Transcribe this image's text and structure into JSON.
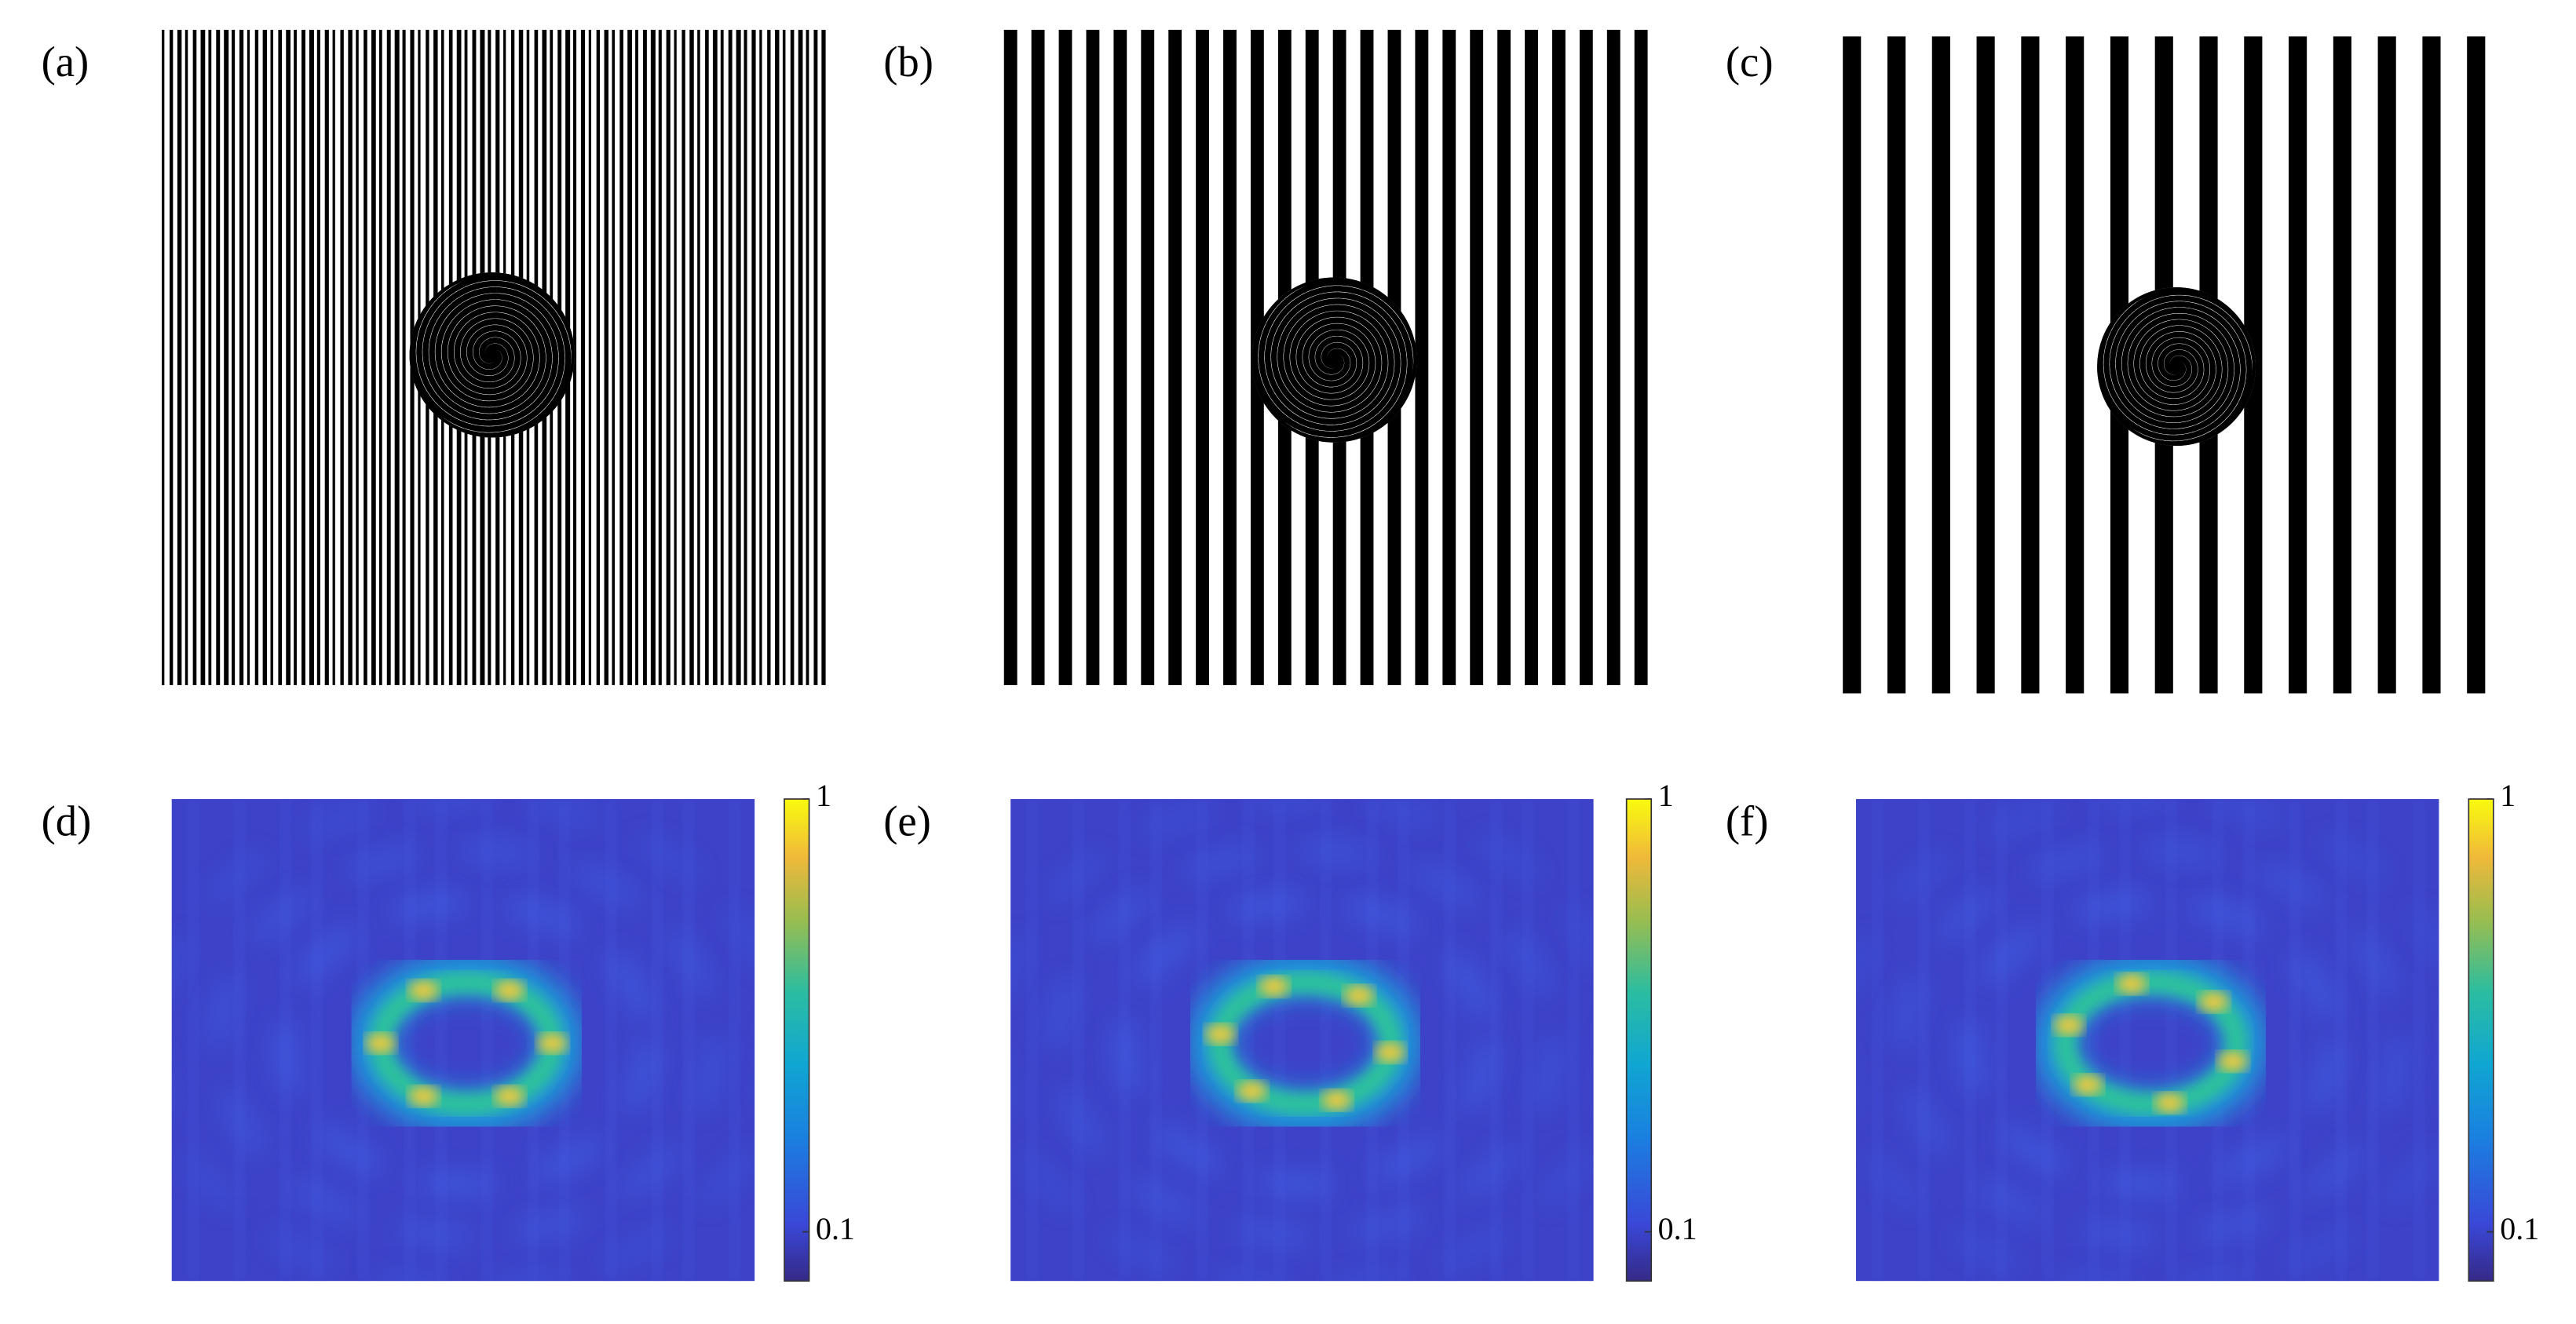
{
  "panels": [
    {
      "label": "(a)"
    },
    {
      "label": "(b)"
    },
    {
      "label": "(c)"
    },
    {
      "label": "(d)",
      "colorbar": {
        "log": true,
        "lim": [
          0.077,
          1
        ],
        "ticks": [
          0.1,
          1
        ]
      }
    },
    {
      "label": "(e)",
      "colorbar": {
        "log": true,
        "lim": [
          0.077,
          1
        ],
        "ticks": [
          0.1,
          1
        ]
      }
    },
    {
      "label": "(f)",
      "colorbar": {
        "log": true,
        "lim": [
          0.077,
          1
        ],
        "ticks": [
          0.1,
          1
        ]
      }
    }
  ]
}
